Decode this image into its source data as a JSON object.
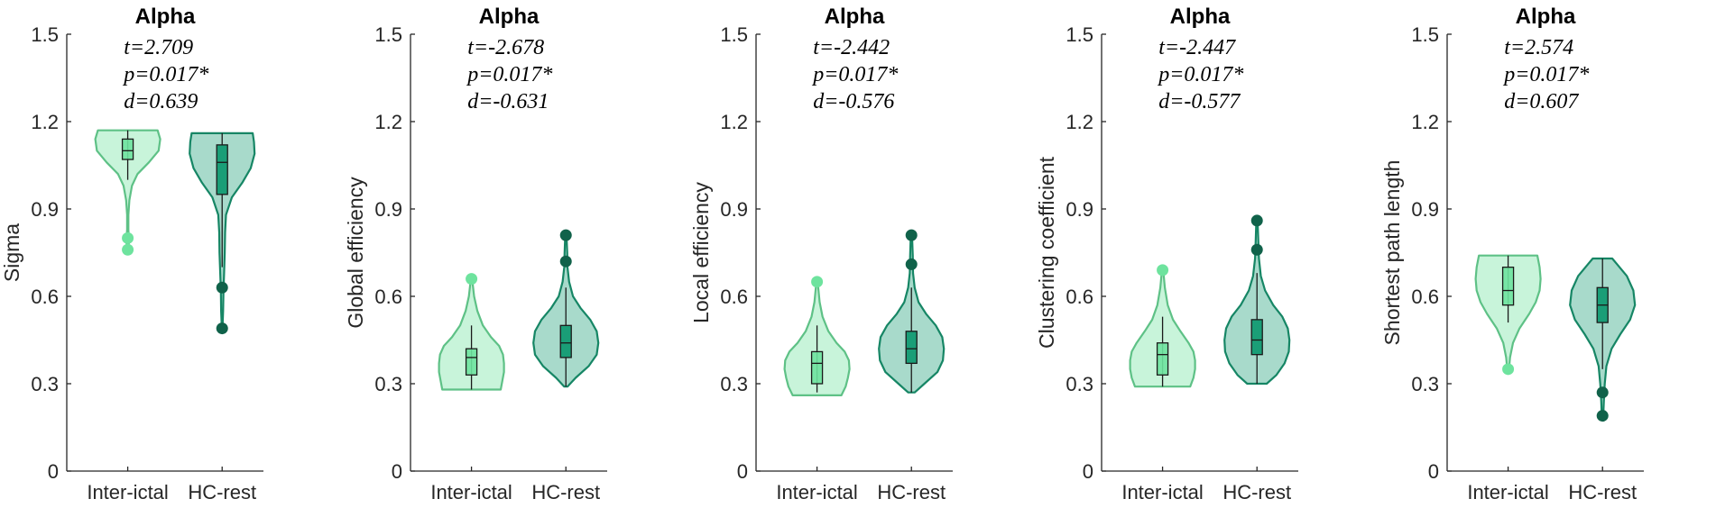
{
  "chart_data": [
    {
      "type": "violin",
      "title": "Alpha",
      "ylabel": "Sigma",
      "xlabel": "",
      "ylim": [
        0,
        1.5
      ],
      "yticks": [
        "0",
        "0.3",
        "0.6",
        "0.9",
        "1.2",
        "1.5"
      ],
      "categories": [
        "Inter-ictal",
        "HC-rest"
      ],
      "stats": [
        "t=2.709",
        "p=0.017*",
        "d=0.639"
      ],
      "series": [
        {
          "name": "Inter-ictal",
          "color": "#6EE39E",
          "min": 0.75,
          "max": 1.17,
          "whisker_low": 1.0,
          "q1": 1.07,
          "median": 1.1,
          "q3": 1.14,
          "whisker_high": 1.17,
          "outliers": [
            0.8,
            0.76
          ],
          "density": [
            [
              0.75,
              0.01
            ],
            [
              0.79,
              0.04
            ],
            [
              0.83,
              0.02
            ],
            [
              0.88,
              0.02
            ],
            [
              0.93,
              0.05
            ],
            [
              0.98,
              0.13
            ],
            [
              1.02,
              0.3
            ],
            [
              1.06,
              0.65
            ],
            [
              1.1,
              0.95
            ],
            [
              1.14,
              1.0
            ],
            [
              1.17,
              0.92
            ]
          ]
        },
        {
          "name": "HC-rest",
          "color": "#1A9E77",
          "min": 0.49,
          "max": 1.16,
          "whisker_low": 0.7,
          "q1": 0.95,
          "median": 1.06,
          "q3": 1.12,
          "whisker_high": 1.16,
          "outliers": [
            0.63,
            0.49
          ],
          "density": [
            [
              0.49,
              0.01
            ],
            [
              0.55,
              0.03
            ],
            [
              0.62,
              0.04
            ],
            [
              0.68,
              0.06
            ],
            [
              0.75,
              0.08
            ],
            [
              0.82,
              0.09
            ],
            [
              0.88,
              0.12
            ],
            [
              0.94,
              0.3
            ],
            [
              0.99,
              0.62
            ],
            [
              1.04,
              0.88
            ],
            [
              1.09,
              1.0
            ],
            [
              1.13,
              0.98
            ],
            [
              1.16,
              0.94
            ]
          ]
        }
      ]
    },
    {
      "type": "violin",
      "title": "Alpha",
      "ylabel": "Global efficiency",
      "xlabel": "",
      "ylim": [
        0,
        1.5
      ],
      "yticks": [
        "0",
        "0.3",
        "0.6",
        "0.9",
        "1.2",
        "1.5"
      ],
      "categories": [
        "Inter-ictal",
        "HC-rest"
      ],
      "stats": [
        "t=-2.678",
        "p=0.017*",
        "d=-0.631"
      ],
      "series": [
        {
          "name": "Inter-ictal",
          "color": "#6EE39E",
          "min": 0.28,
          "max": 0.66,
          "whisker_low": 0.28,
          "q1": 0.33,
          "median": 0.39,
          "q3": 0.42,
          "whisker_high": 0.5,
          "outliers": [
            0.66
          ],
          "density": [
            [
              0.28,
              0.9
            ],
            [
              0.31,
              0.95
            ],
            [
              0.34,
              1.0
            ],
            [
              0.37,
              1.0
            ],
            [
              0.4,
              0.97
            ],
            [
              0.43,
              0.85
            ],
            [
              0.46,
              0.6
            ],
            [
              0.5,
              0.35
            ],
            [
              0.55,
              0.18
            ],
            [
              0.6,
              0.08
            ],
            [
              0.66,
              0.02
            ]
          ]
        },
        {
          "name": "HC-rest",
          "color": "#1A9E77",
          "min": 0.29,
          "max": 0.81,
          "whisker_low": 0.29,
          "q1": 0.39,
          "median": 0.44,
          "q3": 0.5,
          "whisker_high": 0.63,
          "outliers": [
            0.72,
            0.81
          ],
          "density": [
            [
              0.29,
              0.05
            ],
            [
              0.32,
              0.3
            ],
            [
              0.36,
              0.7
            ],
            [
              0.4,
              0.95
            ],
            [
              0.44,
              1.0
            ],
            [
              0.48,
              0.95
            ],
            [
              0.52,
              0.75
            ],
            [
              0.56,
              0.45
            ],
            [
              0.6,
              0.22
            ],
            [
              0.65,
              0.1
            ],
            [
              0.7,
              0.05
            ],
            [
              0.75,
              0.04
            ],
            [
              0.81,
              0.02
            ]
          ]
        }
      ]
    },
    {
      "type": "violin",
      "title": "Alpha",
      "ylabel": "Local efficiency",
      "xlabel": "",
      "ylim": [
        0,
        1.5
      ],
      "yticks": [
        "0",
        "0.3",
        "0.6",
        "0.9",
        "1.2",
        "1.5"
      ],
      "categories": [
        "Inter-ictal",
        "HC-rest"
      ],
      "stats": [
        "t=-2.442",
        "p=0.017*",
        "d=-0.576"
      ],
      "series": [
        {
          "name": "Inter-ictal",
          "color": "#6EE39E",
          "min": 0.26,
          "max": 0.65,
          "whisker_low": 0.27,
          "q1": 0.3,
          "median": 0.37,
          "q3": 0.41,
          "whisker_high": 0.5,
          "outliers": [
            0.65
          ],
          "density": [
            [
              0.26,
              0.75
            ],
            [
              0.29,
              0.88
            ],
            [
              0.32,
              0.95
            ],
            [
              0.35,
              1.0
            ],
            [
              0.38,
              0.98
            ],
            [
              0.41,
              0.85
            ],
            [
              0.44,
              0.6
            ],
            [
              0.48,
              0.35
            ],
            [
              0.53,
              0.17
            ],
            [
              0.58,
              0.08
            ],
            [
              0.65,
              0.02
            ]
          ]
        },
        {
          "name": "HC-rest",
          "color": "#1A9E77",
          "min": 0.27,
          "max": 0.81,
          "whisker_low": 0.27,
          "q1": 0.37,
          "median": 0.42,
          "q3": 0.48,
          "whisker_high": 0.63,
          "outliers": [
            0.71,
            0.81
          ],
          "density": [
            [
              0.27,
              0.1
            ],
            [
              0.3,
              0.4
            ],
            [
              0.34,
              0.8
            ],
            [
              0.38,
              0.97
            ],
            [
              0.42,
              1.0
            ],
            [
              0.46,
              0.95
            ],
            [
              0.5,
              0.75
            ],
            [
              0.54,
              0.45
            ],
            [
              0.58,
              0.22
            ],
            [
              0.63,
              0.1
            ],
            [
              0.68,
              0.05
            ],
            [
              0.74,
              0.04
            ],
            [
              0.81,
              0.02
            ]
          ]
        }
      ]
    },
    {
      "type": "violin",
      "title": "Alpha",
      "ylabel": "Clustering coefficient",
      "xlabel": "",
      "ylim": [
        0,
        1.5
      ],
      "yticks": [
        "0",
        "0.3",
        "0.6",
        "0.9",
        "1.2",
        "1.5"
      ],
      "categories": [
        "Inter-ictal",
        "HC-rest"
      ],
      "stats": [
        "t=-2.447",
        "p=0.017*",
        "d=-0.577"
      ],
      "series": [
        {
          "name": "Inter-ictal",
          "color": "#6EE39E",
          "min": 0.29,
          "max": 0.69,
          "whisker_low": 0.29,
          "q1": 0.33,
          "median": 0.4,
          "q3": 0.44,
          "whisker_high": 0.53,
          "outliers": [
            0.69
          ],
          "density": [
            [
              0.29,
              0.85
            ],
            [
              0.32,
              0.95
            ],
            [
              0.35,
              1.0
            ],
            [
              0.38,
              1.0
            ],
            [
              0.41,
              0.95
            ],
            [
              0.44,
              0.8
            ],
            [
              0.48,
              0.55
            ],
            [
              0.52,
              0.32
            ],
            [
              0.57,
              0.16
            ],
            [
              0.63,
              0.07
            ],
            [
              0.69,
              0.02
            ]
          ]
        },
        {
          "name": "HC-rest",
          "color": "#1A9E77",
          "min": 0.3,
          "max": 0.86,
          "whisker_low": 0.3,
          "q1": 0.4,
          "median": 0.45,
          "q3": 0.52,
          "whisker_high": 0.68,
          "outliers": [
            0.76,
            0.86
          ],
          "density": [
            [
              0.3,
              0.3
            ],
            [
              0.33,
              0.6
            ],
            [
              0.37,
              0.85
            ],
            [
              0.41,
              0.98
            ],
            [
              0.45,
              1.0
            ],
            [
              0.49,
              0.95
            ],
            [
              0.53,
              0.78
            ],
            [
              0.57,
              0.5
            ],
            [
              0.62,
              0.25
            ],
            [
              0.67,
              0.12
            ],
            [
              0.73,
              0.06
            ],
            [
              0.79,
              0.04
            ],
            [
              0.86,
              0.02
            ]
          ]
        }
      ]
    },
    {
      "type": "violin",
      "title": "Alpha",
      "ylabel": "Shortest path length",
      "xlabel": "",
      "ylim": [
        0,
        1.5
      ],
      "yticks": [
        "0",
        "0.3",
        "0.6",
        "0.9",
        "1.2",
        "1.5"
      ],
      "categories": [
        "Inter-ictal",
        "HC-rest"
      ],
      "stats": [
        "t=2.574",
        "p=0.017*",
        "d=0.607"
      ],
      "series": [
        {
          "name": "Inter-ictal",
          "color": "#6EE39E",
          "min": 0.34,
          "max": 0.74,
          "whisker_low": 0.51,
          "q1": 0.57,
          "median": 0.62,
          "q3": 0.7,
          "whisker_high": 0.74,
          "outliers": [
            0.35
          ],
          "density": [
            [
              0.34,
              0.02
            ],
            [
              0.39,
              0.06
            ],
            [
              0.44,
              0.15
            ],
            [
              0.49,
              0.35
            ],
            [
              0.54,
              0.65
            ],
            [
              0.58,
              0.85
            ],
            [
              0.62,
              0.97
            ],
            [
              0.66,
              1.0
            ],
            [
              0.7,
              0.97
            ],
            [
              0.74,
              0.9
            ]
          ]
        },
        {
          "name": "HC-rest",
          "color": "#1A9E77",
          "min": 0.18,
          "max": 0.73,
          "whisker_low": 0.35,
          "q1": 0.51,
          "median": 0.57,
          "q3": 0.63,
          "whisker_high": 0.73,
          "outliers": [
            0.27,
            0.19
          ],
          "density": [
            [
              0.18,
              0.02
            ],
            [
              0.24,
              0.04
            ],
            [
              0.3,
              0.07
            ],
            [
              0.36,
              0.12
            ],
            [
              0.42,
              0.28
            ],
            [
              0.47,
              0.55
            ],
            [
              0.52,
              0.85
            ],
            [
              0.57,
              1.0
            ],
            [
              0.62,
              0.95
            ],
            [
              0.67,
              0.75
            ],
            [
              0.71,
              0.45
            ],
            [
              0.73,
              0.3
            ]
          ]
        }
      ]
    }
  ]
}
